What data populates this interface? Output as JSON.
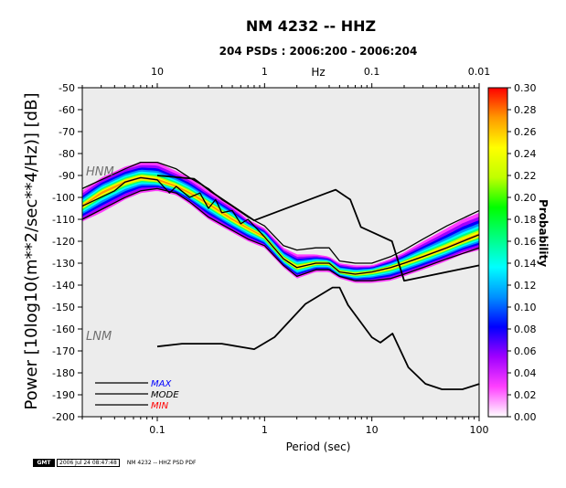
{
  "chart_data": {
    "type": "heatmap",
    "title": "NM 4232 -- HHZ",
    "subtitle": "204 PSDs : 2006:200 - 2006:204",
    "xlabel": "Period (sec)",
    "ylabel": "Power [10log10(m**2/sec**4/Hz)] [dB]",
    "top_axis_label": "Hz",
    "xlim": [
      0.02,
      100
    ],
    "ylim": [
      -200,
      -50
    ],
    "x_scale": "log",
    "x_ticks": [
      "0.1",
      "1",
      "10",
      "100"
    ],
    "top_ticks": [
      "10",
      "1",
      "0.1",
      "0.01"
    ],
    "y_ticks": [
      "-50",
      "-60",
      "-70",
      "-80",
      "-90",
      "-100",
      "-110",
      "-120",
      "-130",
      "-140",
      "-150",
      "-160",
      "-170",
      "-180",
      "-190",
      "-200"
    ],
    "colorbar_label": "Probability",
    "colorbar_ticks": [
      "0.30",
      "0.28",
      "0.26",
      "0.24",
      "0.22",
      "0.20",
      "0.18",
      "0.16",
      "0.14",
      "0.12",
      "0.10",
      "0.08",
      "0.06",
      "0.04",
      "0.02",
      "0.00"
    ],
    "colorbar_range": [
      0,
      0.3
    ],
    "colorbar_colors": [
      "#ffffff",
      "#ff40ff",
      "#a000ff",
      "#0000ff",
      "#0090ff",
      "#00ffff",
      "#00ff80",
      "#00ff00",
      "#c0ff00",
      "#ffff00",
      "#ff9900",
      "#ff0000"
    ],
    "annotations": [
      "HNM",
      "LNM"
    ],
    "legend": [
      {
        "label": "MAX",
        "color": "#0000ff"
      },
      {
        "label": "MODE",
        "color": "#000000"
      },
      {
        "label": "MIN",
        "color": "#ff0000"
      }
    ],
    "pdf_band": {
      "x": [
        0.02,
        0.03,
        0.05,
        0.07,
        0.1,
        0.15,
        0.2,
        0.3,
        0.5,
        0.7,
        1,
        1.5,
        2,
        3,
        4,
        5,
        7,
        10,
        15,
        20,
        30,
        50,
        70,
        100
      ],
      "upper": [
        -97,
        -91,
        -86,
        -84,
        -84,
        -88,
        -91,
        -97,
        -104,
        -110,
        -114,
        -123,
        -126,
        -126,
        -127,
        -130,
        -131,
        -131,
        -128,
        -125,
        -120,
        -114,
        -110,
        -107
      ],
      "lower": [
        -111,
        -107,
        -101,
        -98,
        -97,
        -99,
        -103,
        -110,
        -116,
        -120,
        -123,
        -132,
        -137,
        -134,
        -134,
        -137,
        -139,
        -139,
        -138,
        -136,
        -133,
        -129,
        -126,
        -124
      ],
      "mode": [
        -104,
        -98,
        -93,
        -91,
        -92,
        -95,
        -98,
        -103,
        -110,
        -114,
        -118,
        -128,
        -132,
        -130,
        -130,
        -134,
        -135,
        -134,
        -132,
        -130,
        -127,
        -123,
        -120,
        -117
      ]
    },
    "series": [
      {
        "name": "MAX",
        "x": [
          0.02,
          0.05,
          0.07,
          0.1,
          0.15,
          0.2,
          0.3,
          0.4,
          0.5,
          0.7,
          1,
          1.5,
          2,
          3,
          4,
          5,
          7,
          10,
          15,
          20,
          30,
          50,
          100
        ],
        "y": [
          -96,
          -87,
          -84,
          -84,
          -87,
          -91,
          -96,
          -101,
          -104,
          -109,
          -113,
          -122,
          -124,
          -123,
          -123,
          -129,
          -130,
          -130,
          -127,
          -124,
          -119,
          -113,
          -106
        ]
      },
      {
        "name": "MODE",
        "x": [
          0.02,
          0.04,
          0.05,
          0.07,
          0.1,
          0.13,
          0.15,
          0.2,
          0.25,
          0.3,
          0.35,
          0.4,
          0.5,
          0.6,
          0.7,
          1,
          1.5,
          2,
          3,
          4,
          5,
          7,
          10,
          15,
          20,
          30,
          50,
          100
        ],
        "y": [
          -104,
          -97,
          -93,
          -91,
          -92,
          -98,
          -95,
          -100,
          -98,
          -105,
          -101,
          -107,
          -106,
          -112,
          -110,
          -118,
          -128,
          -132,
          -130,
          -130,
          -134,
          -135,
          -134,
          -132,
          -130,
          -127,
          -123,
          -117
        ]
      },
      {
        "name": "MIN",
        "x": [
          0.02,
          0.05,
          0.07,
          0.1,
          0.15,
          0.2,
          0.3,
          0.5,
          0.7,
          1,
          1.5,
          2,
          3,
          4,
          5,
          7,
          10,
          15,
          20,
          30,
          50,
          100
        ],
        "y": [
          -110,
          -100,
          -97,
          -96,
          -98,
          -102,
          -109,
          -115,
          -119,
          -122,
          -131,
          -136,
          -133,
          -133,
          -136,
          -138,
          -138,
          -137,
          -135,
          -132,
          -128,
          -123
        ]
      }
    ],
    "hnm": {
      "x": [
        0.1,
        0.22,
        0.32,
        0.8,
        3.8,
        4.6,
        6.3,
        7.9,
        15.4,
        20,
        100
      ],
      "y": [
        -90,
        -91.5,
        -97.5,
        -110.5,
        -98,
        -96.5,
        -101,
        -113.5,
        -120,
        -138,
        -131
      ]
    },
    "lnm": {
      "x": [
        0.1,
        0.17,
        0.4,
        0.8,
        1.24,
        2.4,
        4.3,
        5,
        6,
        10,
        12,
        15.6,
        21.9,
        31.6,
        45,
        70,
        101
      ],
      "y": [
        -168,
        -166.7,
        -166.7,
        -169.2,
        -163.7,
        -148.6,
        -141.1,
        -141.1,
        -149.1,
        -163.8,
        -166.2,
        -162.1,
        -177.5,
        -185,
        -187.5,
        -187.5,
        -185
      ]
    }
  },
  "footer": {
    "logo": "GMT",
    "timestamp": "2006 Jul 24 08:47:48",
    "label": "NM 4232 -- HHZ PSD PDF"
  }
}
